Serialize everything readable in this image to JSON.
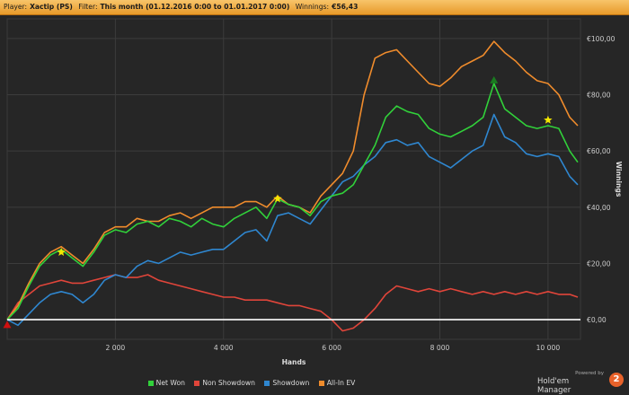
{
  "header": {
    "player_label": "Player:",
    "player_value": "Xactip (PS)",
    "filter_label": "Filter:",
    "filter_value": "This month (01.12.2016 0:00 to 01.01.2017 0:00)",
    "winnings_label": "Winnings:",
    "winnings_value": "€56,43"
  },
  "brand": {
    "powered_by": "Powered by",
    "name": "Hold'em Manager",
    "logo_text": "2"
  },
  "colors": {
    "net_won": "#31d13a",
    "non_showdown": "#e0453a",
    "showdown": "#2f87d0",
    "all_in_ev": "#f08c2c",
    "zero_line": "#ffffff",
    "header_bg": "#f0a43a"
  },
  "chart_data": {
    "type": "line",
    "xlabel": "Hands",
    "ylabel": "Winnings",
    "xlim": [
      0,
      10600
    ],
    "ylim": [
      -7,
      107
    ],
    "x_ticks": [
      2000,
      4000,
      6000,
      8000,
      10000
    ],
    "x_tick_labels": [
      "2 000",
      "4 000",
      "6 000",
      "8 000",
      "10 000"
    ],
    "y_ticks": [
      0,
      20,
      40,
      60,
      80,
      100
    ],
    "y_tick_labels": [
      "€0,00",
      "€20,00",
      "€40,00",
      "€60,00",
      "€80,00",
      "€100,00"
    ],
    "grid": true,
    "legend": "bottom",
    "x": [
      0,
      200,
      400,
      600,
      800,
      1000,
      1200,
      1400,
      1600,
      1800,
      2000,
      2200,
      2400,
      2600,
      2800,
      3000,
      3200,
      3400,
      3600,
      3800,
      4000,
      4200,
      4400,
      4600,
      4800,
      5000,
      5200,
      5400,
      5600,
      5800,
      6000,
      6200,
      6400,
      6600,
      6800,
      7000,
      7200,
      7400,
      7600,
      7800,
      8000,
      8200,
      8400,
      8600,
      8800,
      9000,
      9200,
      9400,
      9600,
      9800,
      10000,
      10200,
      10400,
      10550
    ],
    "series": [
      {
        "name": "Net Won",
        "color": "#31d13a",
        "values": [
          0,
          4,
          12,
          19,
          23,
          25,
          22,
          19,
          24,
          30,
          32,
          31,
          34,
          35,
          33,
          36,
          35,
          33,
          36,
          34,
          33,
          36,
          38,
          40,
          36,
          43,
          41,
          40,
          37,
          42,
          44,
          45,
          48,
          55,
          62,
          72,
          76,
          74,
          73,
          68,
          66,
          65,
          67,
          69,
          72,
          84,
          75,
          72,
          69,
          68,
          69,
          68,
          60,
          56
        ]
      },
      {
        "name": "Non Showdown",
        "color": "#e0453a",
        "values": [
          0,
          6,
          9,
          12,
          13,
          14,
          13,
          13,
          14,
          15,
          16,
          15,
          15,
          16,
          14,
          13,
          12,
          11,
          10,
          9,
          8,
          8,
          7,
          7,
          7,
          6,
          5,
          5,
          4,
          3,
          0,
          -4,
          -3,
          0,
          4,
          9,
          12,
          11,
          10,
          11,
          10,
          11,
          10,
          9,
          10,
          9,
          10,
          9,
          10,
          9,
          10,
          9,
          9,
          8
        ]
      },
      {
        "name": "Showdown",
        "color": "#2f87d0",
        "values": [
          0,
          -2,
          2,
          6,
          9,
          10,
          9,
          6,
          9,
          14,
          16,
          15,
          19,
          21,
          20,
          22,
          24,
          23,
          24,
          25,
          25,
          28,
          31,
          32,
          28,
          37,
          38,
          36,
          34,
          39,
          44,
          49,
          51,
          55,
          58,
          63,
          64,
          62,
          63,
          58,
          56,
          54,
          57,
          60,
          62,
          73,
          65,
          63,
          59,
          58,
          59,
          58,
          51,
          48
        ]
      },
      {
        "name": "All-In EV",
        "color": "#f08c2c",
        "values": [
          0,
          5,
          13,
          20,
          24,
          26,
          23,
          20,
          25,
          31,
          33,
          33,
          36,
          35,
          35,
          37,
          38,
          36,
          38,
          40,
          40,
          40,
          42,
          42,
          40,
          44,
          41,
          40,
          38,
          44,
          48,
          52,
          60,
          80,
          93,
          95,
          96,
          92,
          88,
          84,
          83,
          86,
          90,
          92,
          94,
          99,
          95,
          92,
          88,
          85,
          84,
          80,
          72,
          69
        ]
      }
    ],
    "markers": [
      {
        "label": "star",
        "x": 1000,
        "y": 24,
        "color": "#f2e600"
      },
      {
        "label": "star",
        "x": 5000,
        "y": 43,
        "color": "#f2e600"
      },
      {
        "label": "star",
        "x": 10000,
        "y": 71,
        "color": "#f2e600"
      },
      {
        "label": "triangle",
        "x": 9000,
        "y": 85,
        "color": "#1a7a20"
      },
      {
        "label": "triangle",
        "x": 0,
        "y": -2,
        "color": "#d01010"
      }
    ]
  }
}
